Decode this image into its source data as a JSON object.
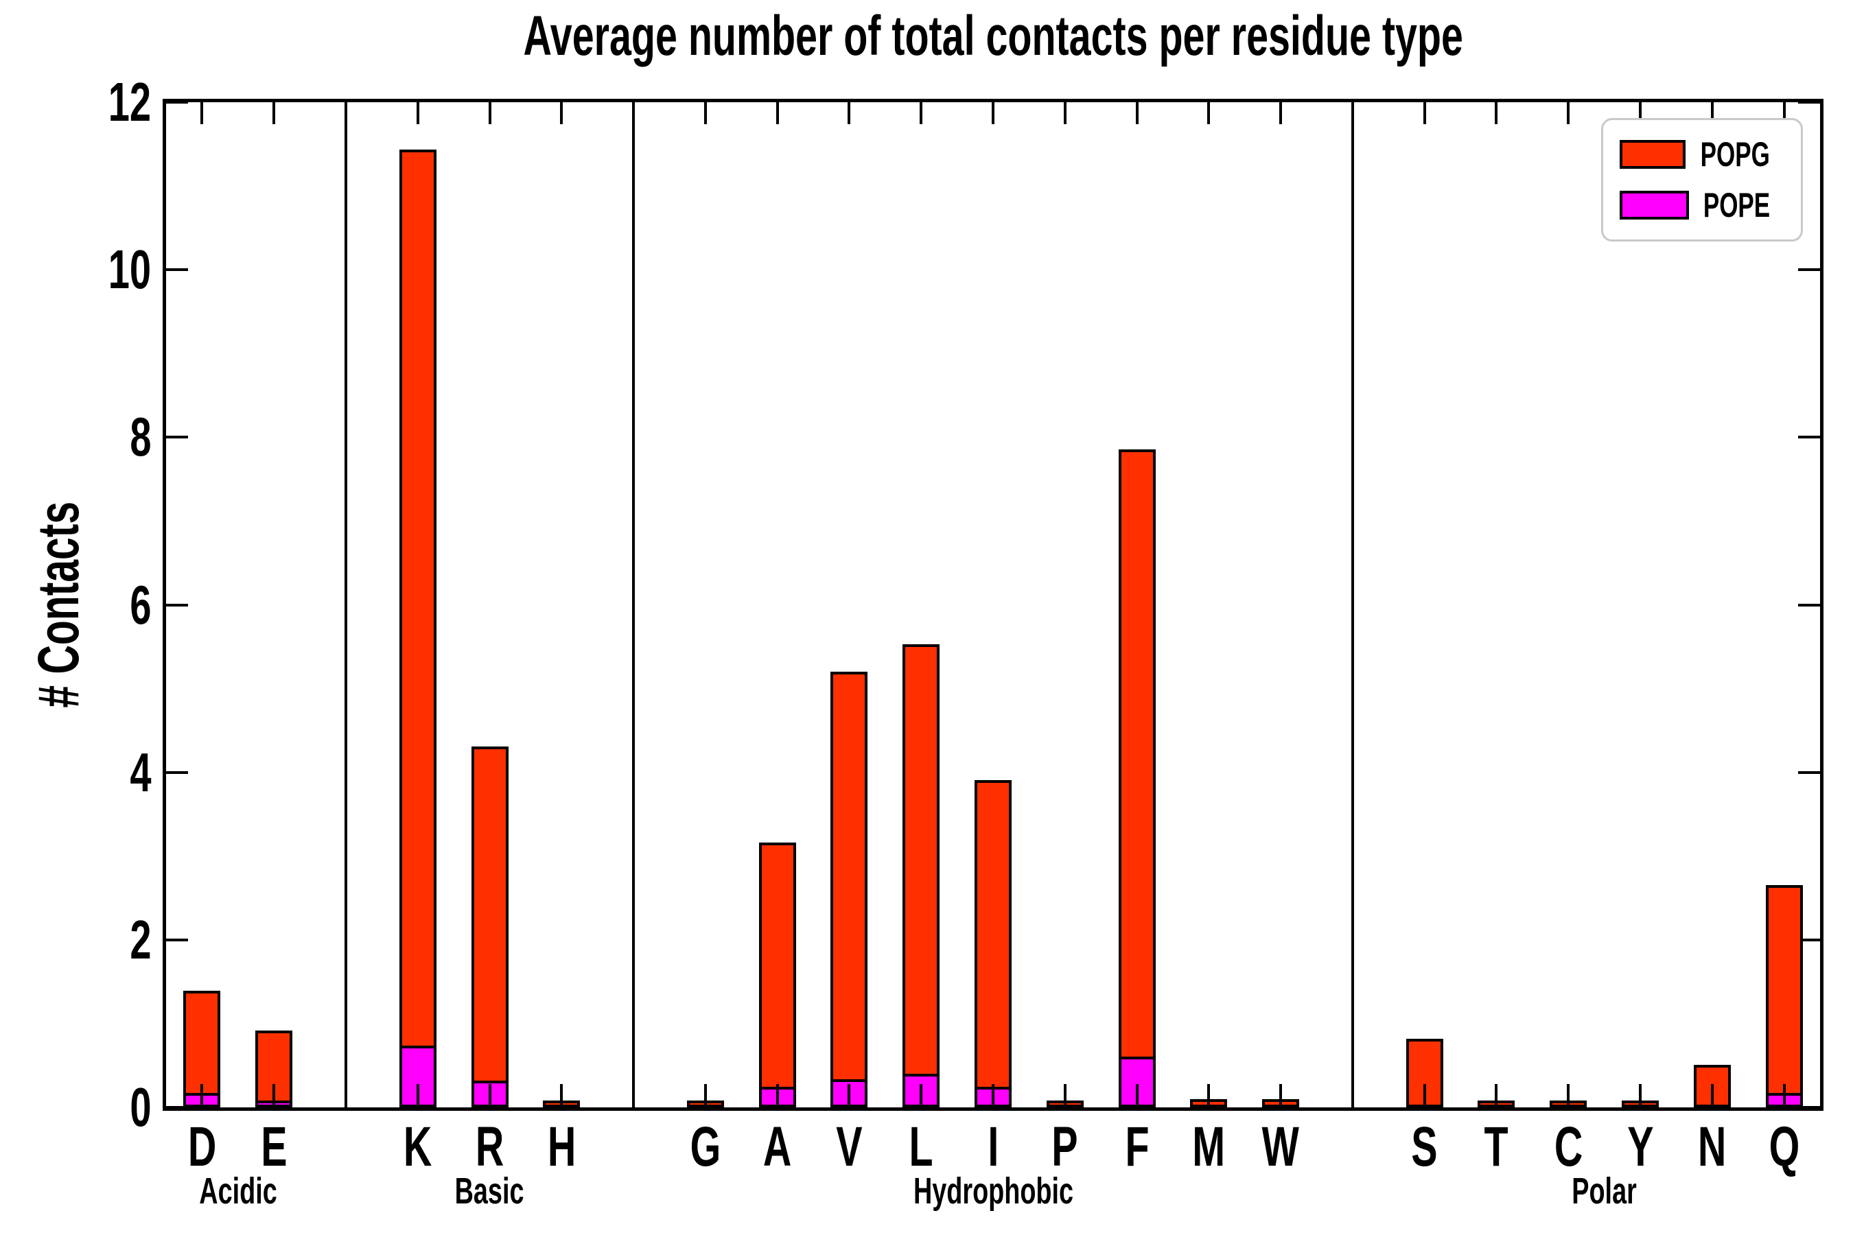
{
  "title": "Average number of total contacts per residue type",
  "ylabel": "# Contacts",
  "legend": {
    "position": "upper right",
    "entries": [
      {
        "label": "POPG",
        "color": "#ff3000"
      },
      {
        "label": "POPE",
        "color": "#ff00ff"
      }
    ]
  },
  "chart_data": {
    "type": "bar",
    "title": "Average number of total contacts per residue type",
    "xlabel": "",
    "ylabel": "# Contacts",
    "ylim": [
      0,
      12
    ],
    "yticks": [
      0,
      2,
      4,
      6,
      8,
      10,
      12
    ],
    "grid": false,
    "legend_position": "upper right",
    "bar_outline_color": "#000000",
    "group_separator_lines": true,
    "groups": [
      {
        "label": "Acidic",
        "residues": [
          "D",
          "E"
        ]
      },
      {
        "label": "Basic",
        "residues": [
          "K",
          "R",
          "H"
        ]
      },
      {
        "label": "Hydrophobic",
        "residues": [
          "G",
          "A",
          "V",
          "L",
          "I",
          "P",
          "F",
          "M",
          "W"
        ]
      },
      {
        "label": "Polar",
        "residues": [
          "S",
          "T",
          "C",
          "Y",
          "N",
          "Q"
        ]
      }
    ],
    "categories": [
      "D",
      "E",
      "K",
      "R",
      "H",
      "G",
      "A",
      "V",
      "L",
      "I",
      "P",
      "F",
      "M",
      "W",
      "S",
      "T",
      "C",
      "Y",
      "N",
      "Q"
    ],
    "series": [
      {
        "name": "POPG",
        "color": "#ff3000",
        "values": [
          1.33,
          0.85,
          11.37,
          4.24,
          0.02,
          0.02,
          3.1,
          5.14,
          5.46,
          3.84,
          0.02,
          7.79,
          0.03,
          0.03,
          0.75,
          0.02,
          0.02,
          0.02,
          0.44,
          2.59
        ]
      },
      {
        "name": "POPE",
        "color": "#ff00ff",
        "values": [
          0.11,
          0.02,
          0.67,
          0.25,
          0,
          0,
          0.18,
          0.27,
          0.34,
          0.18,
          0,
          0.54,
          0,
          0,
          0,
          0,
          0,
          0,
          0,
          0.11
        ]
      }
    ]
  }
}
